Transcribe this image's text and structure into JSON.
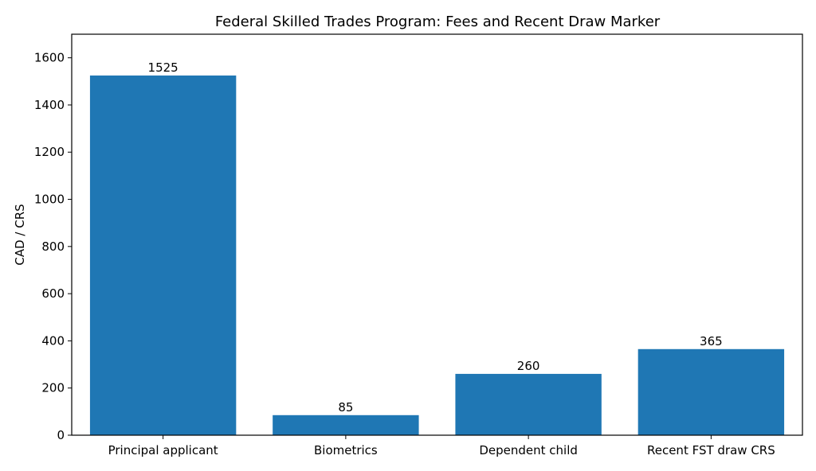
{
  "chart_data": {
    "type": "bar",
    "title": "Federal Skilled Trades Program: Fees and Recent Draw Marker",
    "xlabel": "",
    "ylabel": "CAD / CRS",
    "categories": [
      "Principal applicant",
      "Biometrics",
      "Dependent child",
      "Recent FST draw CRS"
    ],
    "values": [
      1525,
      85,
      260,
      365
    ],
    "value_labels": [
      "1525",
      "85",
      "260",
      "365"
    ],
    "ylim": [
      0,
      1700
    ],
    "yticks": [
      0,
      200,
      400,
      600,
      800,
      1000,
      1200,
      1400,
      1600
    ],
    "ytick_labels": [
      "0",
      "200",
      "400",
      "600",
      "800",
      "1000",
      "1200",
      "1400",
      "1600"
    ],
    "bar_color": "#1f77b4",
    "grid": false,
    "legend": "none"
  }
}
